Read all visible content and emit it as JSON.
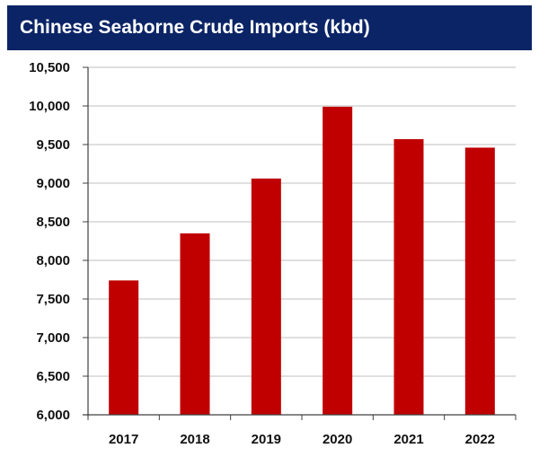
{
  "colors": {
    "header_bg": "#0b2466",
    "header_text": "#ffffff",
    "bar": "#c00000",
    "grid": "#bfbfbf",
    "axis": "#404040",
    "label": "#111111"
  },
  "chart_data": {
    "type": "bar",
    "title": "Chinese Seaborne Crude Imports (kbd)",
    "categories": [
      "2017",
      "2018",
      "2019",
      "2020",
      "2021",
      "2022"
    ],
    "values": [
      7740,
      8350,
      9060,
      9990,
      9570,
      9460
    ],
    "ylim": [
      6000,
      10500
    ],
    "yticks": [
      6000,
      6500,
      7000,
      7500,
      8000,
      8500,
      9000,
      9500,
      10000,
      10500
    ],
    "ytick_labels": [
      "6,000",
      "6,500",
      "7,000",
      "7,500",
      "8,000",
      "8,500",
      "9,000",
      "9,500",
      "10,000",
      "10,500"
    ],
    "xlabel": "",
    "ylabel": "",
    "grid": true,
    "legend": "none"
  }
}
